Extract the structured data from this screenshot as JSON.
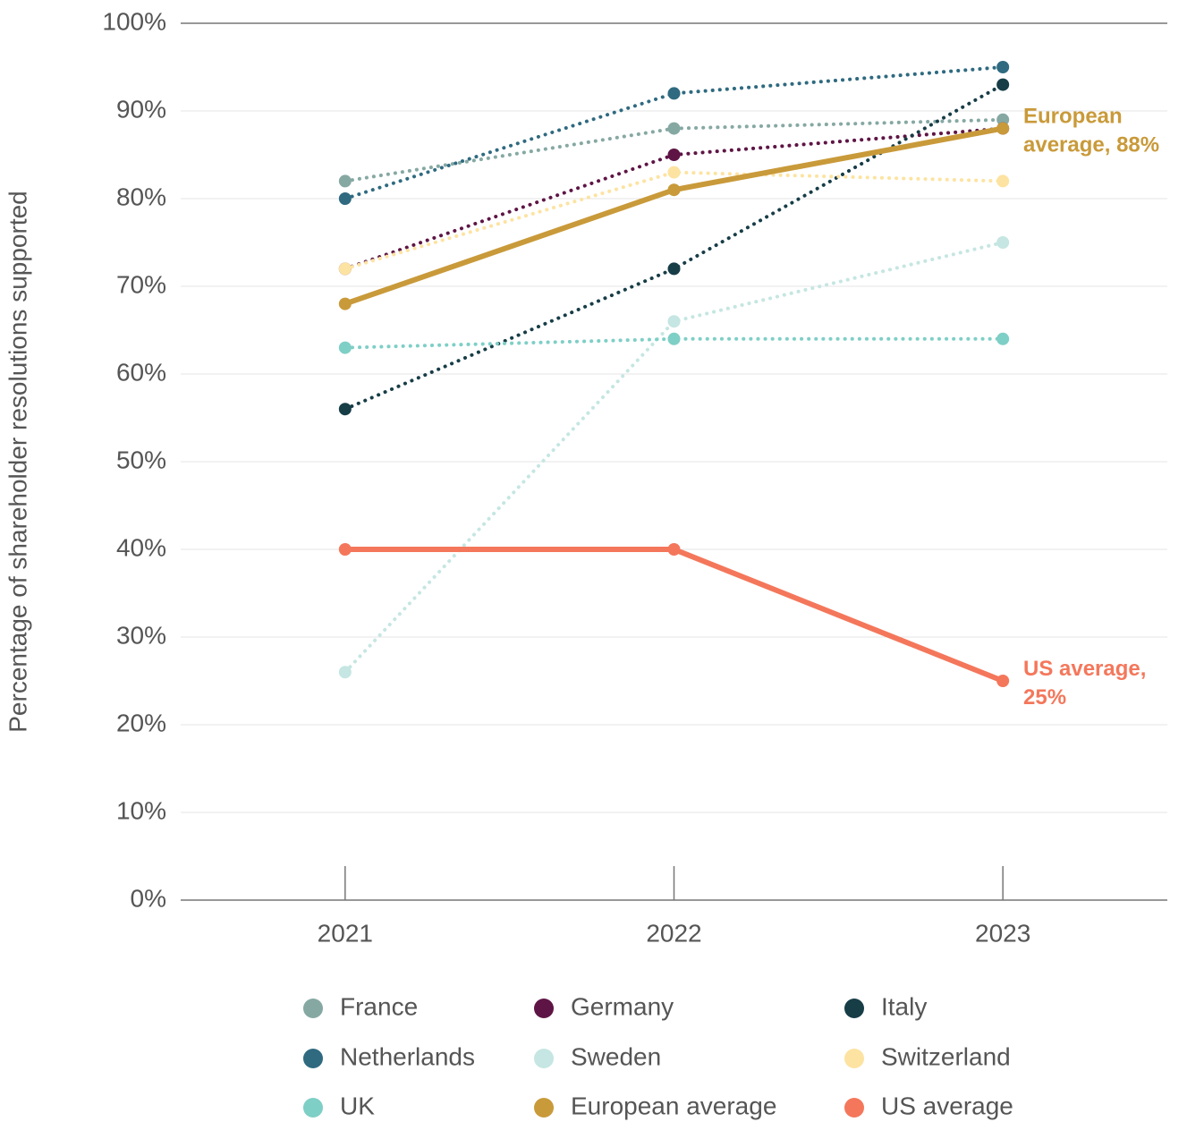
{
  "chart_data": {
    "type": "line",
    "y_label": "Percentage of shareholder resolutions supported",
    "categories": [
      "2021",
      "2022",
      "2023"
    ],
    "ylim": [
      0,
      100
    ],
    "yticks": [
      {
        "value": 0,
        "label": "0%"
      },
      {
        "value": 10,
        "label": "10%"
      },
      {
        "value": 20,
        "label": "20%"
      },
      {
        "value": 30,
        "label": "30%"
      },
      {
        "value": 40,
        "label": "40%"
      },
      {
        "value": 50,
        "label": "50%"
      },
      {
        "value": 60,
        "label": "60%"
      },
      {
        "value": 70,
        "label": "70%"
      },
      {
        "value": 80,
        "label": "80%"
      },
      {
        "value": 90,
        "label": "90%"
      },
      {
        "value": 100,
        "label": "100%"
      }
    ],
    "grid": true,
    "series": [
      {
        "name": "France",
        "color": "#86a8a3",
        "style": "dotted",
        "values": [
          82,
          88,
          89
        ]
      },
      {
        "name": "Germany",
        "color": "#5e1545",
        "style": "dotted",
        "values": [
          72,
          85,
          88
        ]
      },
      {
        "name": "Italy",
        "color": "#173d47",
        "style": "dotted",
        "values": [
          56,
          72,
          93
        ]
      },
      {
        "name": "Netherlands",
        "color": "#2f6a80",
        "style": "dotted",
        "values": [
          80,
          92,
          95
        ]
      },
      {
        "name": "Sweden",
        "color": "#c5e6e2",
        "style": "dotted",
        "values": [
          26,
          66,
          75
        ]
      },
      {
        "name": "Switzerland",
        "color": "#fde3a1",
        "style": "dotted",
        "values": [
          72,
          83,
          82
        ]
      },
      {
        "name": "UK",
        "color": "#7ecfc6",
        "style": "dotted",
        "values": [
          63,
          64,
          64
        ]
      },
      {
        "name": "European average",
        "color": "#c99a3a",
        "style": "solid",
        "values": [
          68,
          81,
          88
        ]
      },
      {
        "name": "US average",
        "color": "#f4775b",
        "style": "solid",
        "values": [
          40,
          40,
          25
        ]
      }
    ],
    "annotations": [
      {
        "series": 7,
        "lines": [
          "European",
          "average, 88%"
        ]
      },
      {
        "series": 8,
        "lines": [
          "US average,",
          "25%"
        ]
      }
    ]
  }
}
